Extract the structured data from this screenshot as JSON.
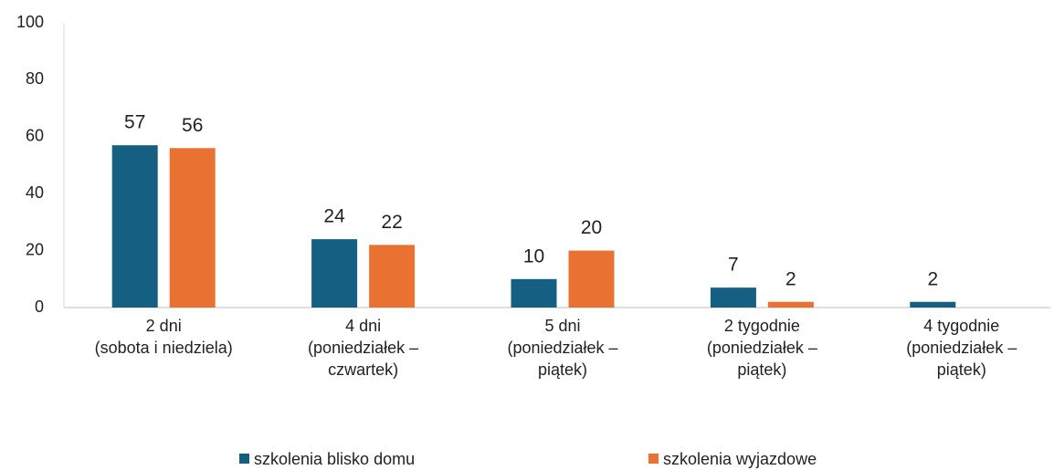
{
  "chart_data": {
    "type": "bar",
    "categories": [
      [
        "2 dni",
        "(sobota i niedziela)"
      ],
      [
        "4 dni",
        "(poniedziałek –",
        "czwartek)"
      ],
      [
        "5 dni",
        "(poniedziałek –",
        "piątek)"
      ],
      [
        "2 tygodnie",
        "(poniedziałek –",
        "piątek)"
      ],
      [
        "4 tygodnie",
        "(poniedziałek –",
        "piątek)"
      ]
    ],
    "series": [
      {
        "name": "szkolenia blisko domu",
        "color": "#156082",
        "values": [
          57,
          24,
          10,
          7,
          2
        ]
      },
      {
        "name": "szkolenia wyjazdowe",
        "color": "#e97132",
        "values": [
          56,
          22,
          20,
          2,
          null
        ]
      }
    ],
    "ylim": [
      0,
      100
    ],
    "yticks": [
      0,
      20,
      40,
      60,
      80,
      100
    ],
    "grid": false,
    "legend": "bottom"
  }
}
